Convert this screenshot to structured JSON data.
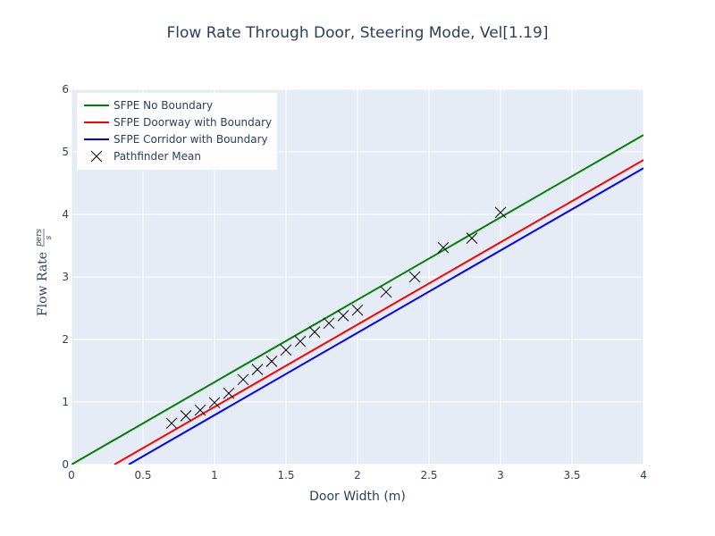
{
  "chart_data": {
    "type": "line",
    "title": "Flow Rate Through Door, Steering Mode, Vel[1.19]",
    "xlabel": "Door Width (m)",
    "ylabel": {
      "text": "Flow Rate",
      "numerator": "pers",
      "denominator": "s"
    },
    "xlim": [
      0,
      4
    ],
    "ylim": [
      0,
      6
    ],
    "x_ticks": [
      "0",
      "0.5",
      "1",
      "1.5",
      "2",
      "2.5",
      "3",
      "3.5",
      "4"
    ],
    "y_ticks": [
      "0",
      "1",
      "2",
      "3",
      "4",
      "5",
      "6"
    ],
    "grid": true,
    "legend_position": "top-left",
    "series": [
      {
        "name": "SFPE No Boundary",
        "type": "line",
        "color": "#008000",
        "x": [
          0,
          4
        ],
        "y": [
          0,
          5.27
        ]
      },
      {
        "name": "SFPE Doorway with Boundary",
        "type": "line",
        "color": "#ff0000",
        "x": [
          0.3,
          4
        ],
        "y": [
          0,
          4.87
        ]
      },
      {
        "name": "SFPE Corridor with Boundary",
        "type": "line",
        "color": "#0000ff",
        "x": [
          0.4,
          4
        ],
        "y": [
          0,
          4.74
        ]
      },
      {
        "name": "Pathfinder Mean",
        "type": "scatter",
        "marker": "x",
        "color": "#000000",
        "x": [
          0.7,
          0.8,
          0.9,
          1.0,
          1.1,
          1.2,
          1.3,
          1.4,
          1.5,
          1.6,
          1.7,
          1.8,
          1.9,
          2.0,
          2.2,
          2.4,
          2.6,
          2.8,
          3.0
        ],
        "y": [
          0.66,
          0.78,
          0.87,
          0.99,
          1.14,
          1.36,
          1.52,
          1.65,
          1.83,
          1.97,
          2.12,
          2.26,
          2.38,
          2.47,
          2.76,
          3.0,
          3.47,
          3.62,
          4.03
        ]
      }
    ]
  }
}
